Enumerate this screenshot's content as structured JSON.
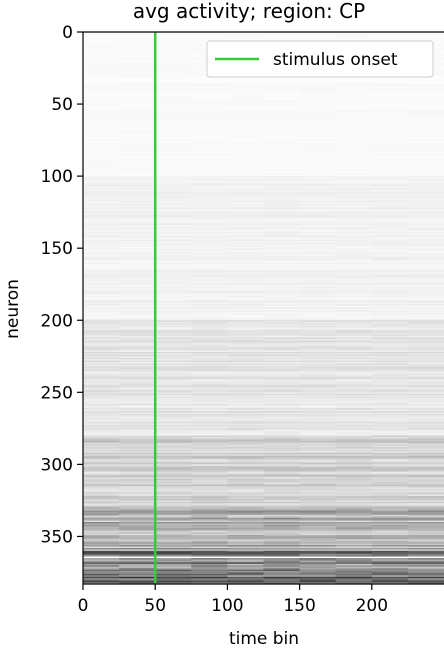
{
  "chart_data": {
    "type": "heatmap",
    "title": "avg activity; region: CP",
    "xlabel": "time bin",
    "ylabel": "neuron",
    "xlim": [
      0,
      250
    ],
    "ylim": [
      383,
      0
    ],
    "x_ticks": [
      0,
      50,
      100,
      150,
      200
    ],
    "y_ticks": [
      0,
      50,
      100,
      150,
      200,
      250,
      300,
      350
    ],
    "colormap": "gray_r",
    "n_neurons": 383,
    "n_time_bins": 250,
    "intensity_by_neuron_range": [
      {
        "neurons": [
          0,
          100
        ],
        "level": 0.02
      },
      {
        "neurons": [
          100,
          200
        ],
        "level": 0.05
      },
      {
        "neurons": [
          200,
          280
        ],
        "level": 0.1
      },
      {
        "neurons": [
          280,
          330
        ],
        "level": 0.18
      },
      {
        "neurons": [
          330,
          360
        ],
        "level": 0.3
      },
      {
        "neurons": [
          360,
          383
        ],
        "level": 0.55
      }
    ],
    "stimulus_onset": {
      "x": 50,
      "label": "stimulus onset",
      "color": "#33cc33"
    },
    "legend": {
      "position": "top-right",
      "entries": [
        "stimulus onset"
      ]
    },
    "grid": false
  }
}
